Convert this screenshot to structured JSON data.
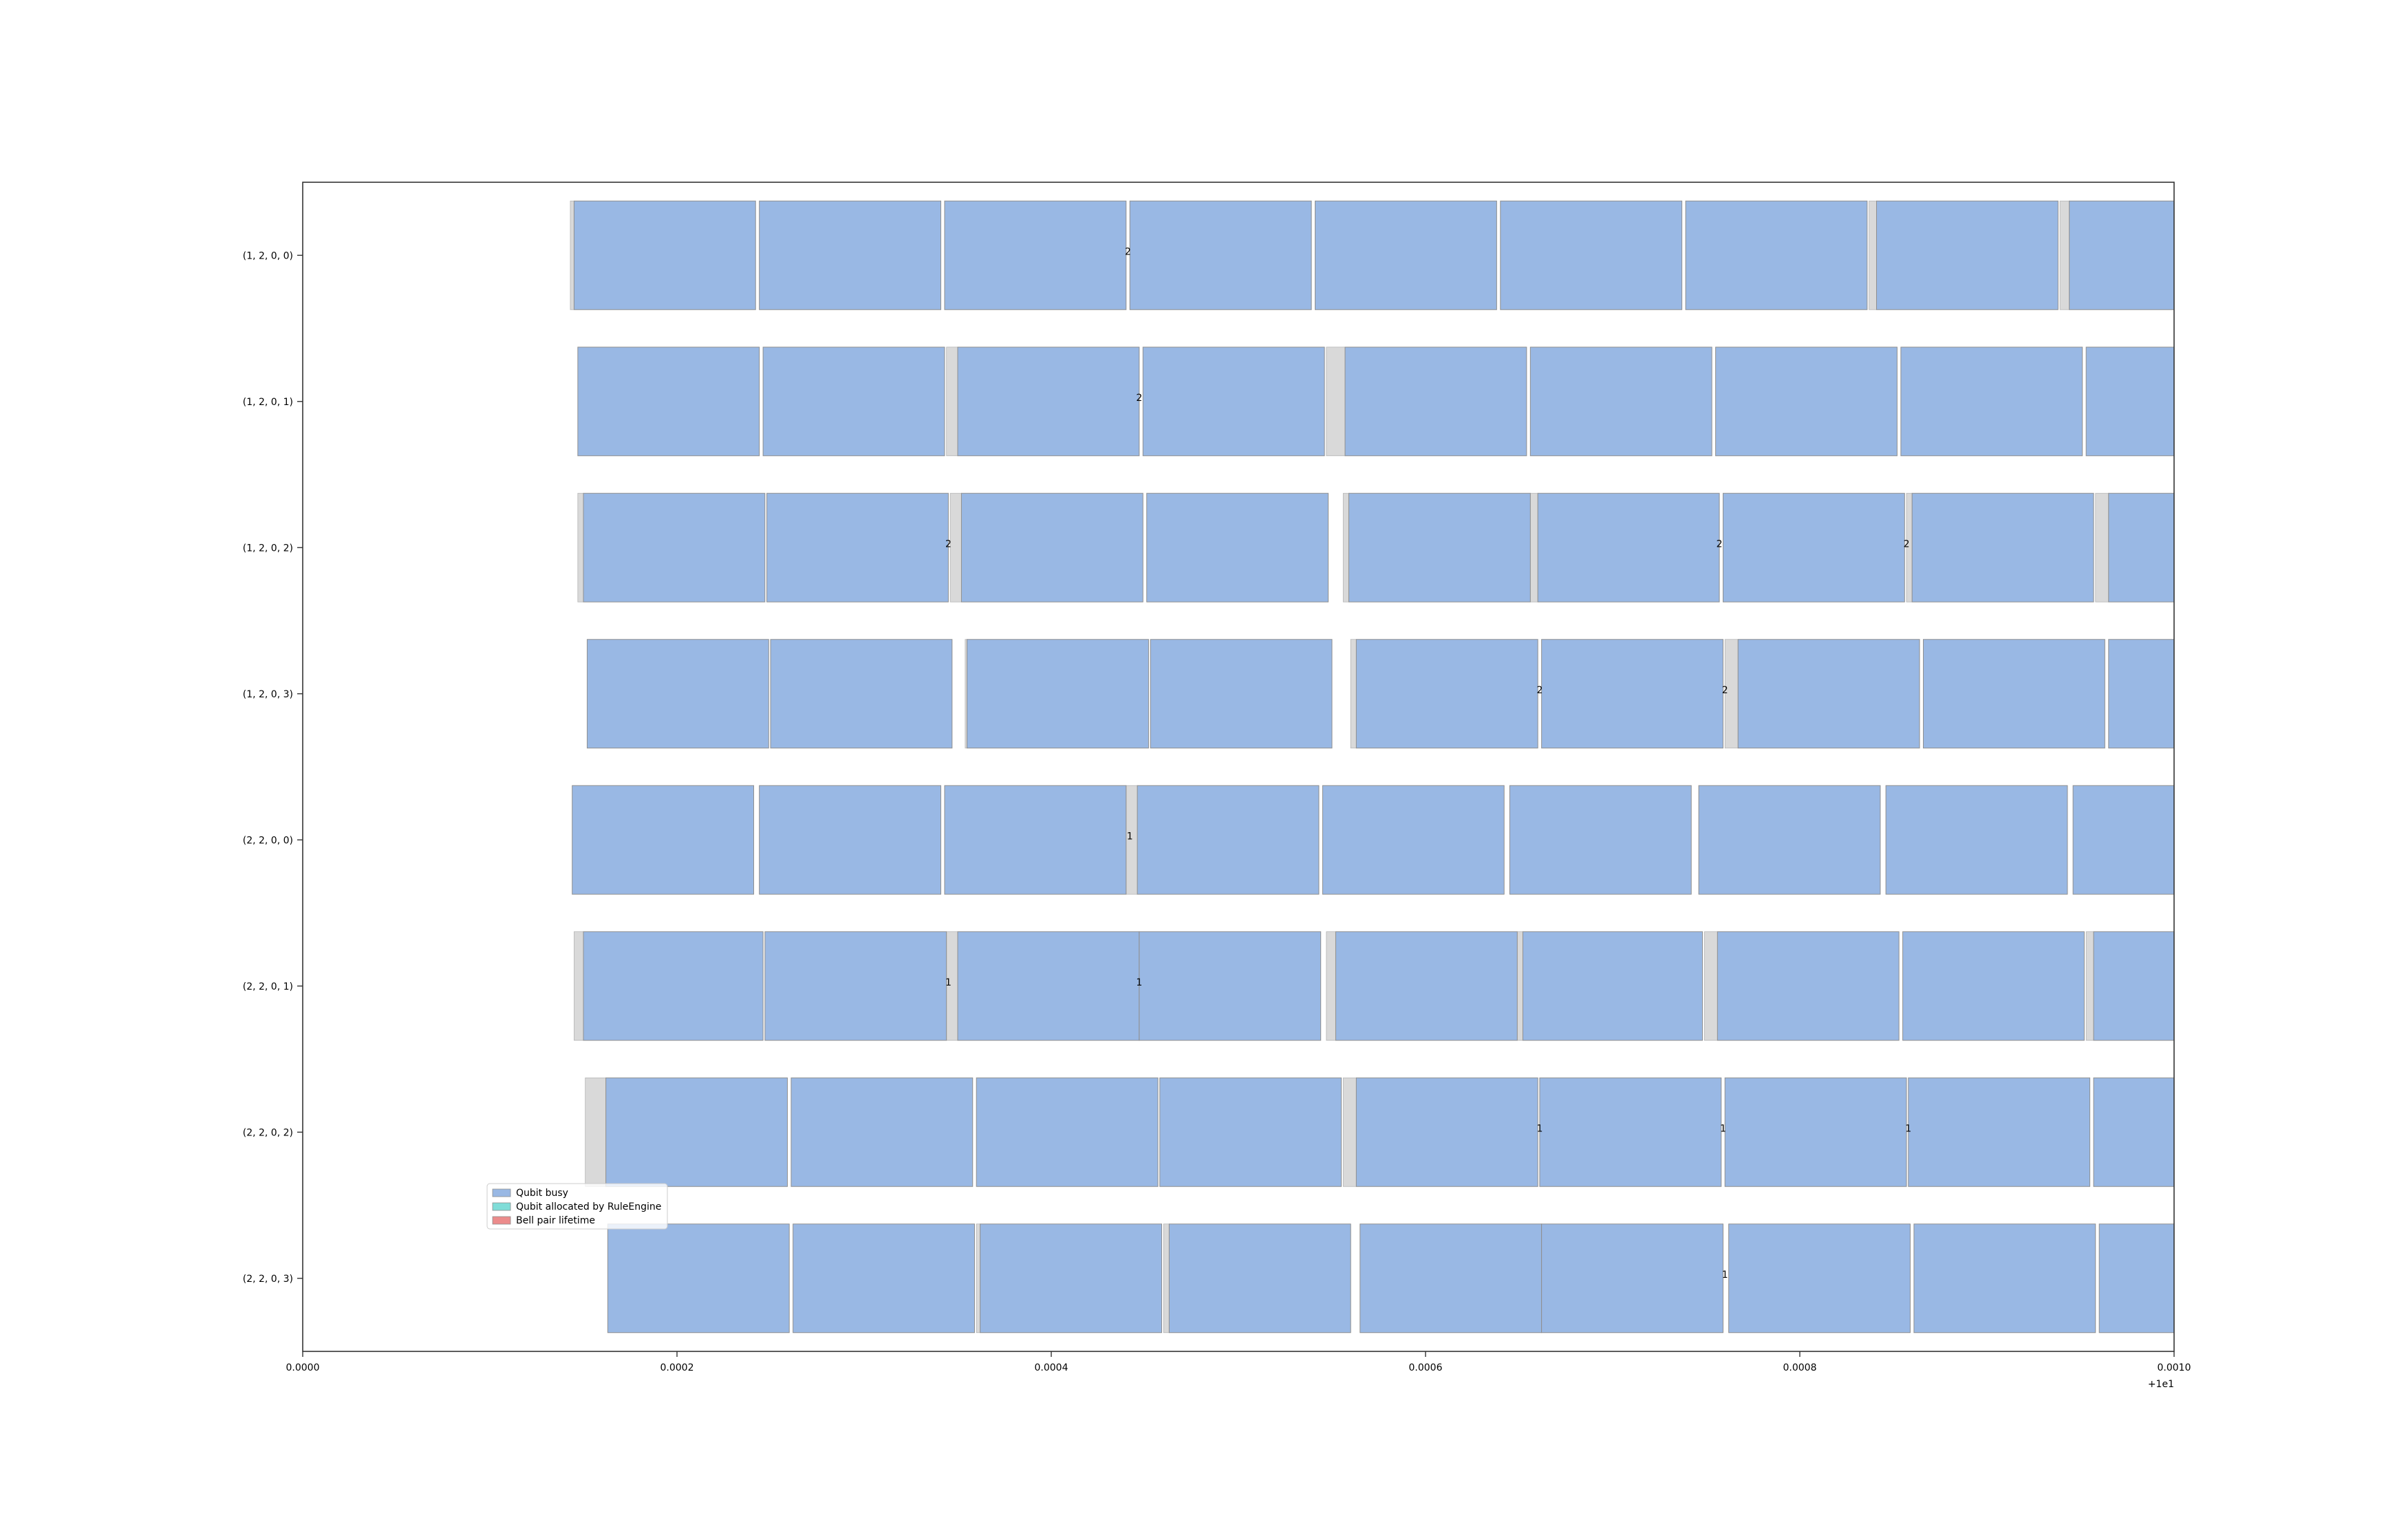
{
  "chart_data": {
    "type": "bar",
    "orientation": "horizontal-timeline",
    "title": "",
    "xlabel": "",
    "ylabel": "",
    "xlim": [
      0.0,
      0.001
    ],
    "x_offset_label": "+1e1",
    "x_ticks": [
      "0.0000",
      "0.0002",
      "0.0004",
      "0.0006",
      "0.0008",
      "0.0010"
    ],
    "x_tick_values": [
      0.0,
      0.0002,
      0.0004,
      0.0006,
      0.0008,
      0.001
    ],
    "categories": [
      "(1, 2, 0, 0)",
      "(1, 2, 0, 1)",
      "(1, 2, 0, 2)",
      "(1, 2, 0, 3)",
      "(2, 2, 0, 0)",
      "(2, 2, 0, 1)",
      "(2, 2, 0, 2)",
      "(2, 2, 0, 3)"
    ],
    "grid": false,
    "legend": {
      "position": "lower-left",
      "entries": [
        {
          "label": "Qubit busy",
          "color": "#99b8e4"
        },
        {
          "label": "Qubit allocated by RuleEngine",
          "color": "#7fddd8"
        },
        {
          "label": "Bell pair lifetime",
          "color": "#ec8b8b"
        }
      ]
    },
    "colors": {
      "busy": "#99b8e4",
      "busy_edge": "#8f8f8f",
      "allocated_gap": "#d9d9d9",
      "axes": "#333333"
    },
    "series": [
      {
        "category": "(1, 2, 0, 0)",
        "busy": [
          [
            0.000145,
            0.000242
          ],
          [
            0.000244,
            0.000341
          ],
          [
            0.000343,
            0.00044
          ],
          [
            0.000442,
            0.000539
          ],
          [
            0.000541,
            0.000638
          ],
          [
            0.00064,
            0.000737
          ],
          [
            0.000739,
            0.000836
          ],
          [
            0.000841,
            0.000938
          ],
          [
            0.000944,
            0.001
          ]
        ],
        "gaps": [
          [
            0.000143,
            0.000145
          ],
          [
            0.000837,
            0.000841
          ],
          [
            0.000939,
            0.000944
          ]
        ],
        "labels": [
          {
            "x": 0.000441,
            "text": "2"
          }
        ]
      },
      {
        "category": "(1, 2, 0, 1)",
        "busy": [
          [
            0.000147,
            0.000244
          ],
          [
            0.000246,
            0.000343
          ],
          [
            0.00035,
            0.000447
          ],
          [
            0.000449,
            0.000546
          ],
          [
            0.000557,
            0.000654
          ],
          [
            0.000656,
            0.000753
          ],
          [
            0.000755,
            0.000852
          ],
          [
            0.000854,
            0.000951
          ],
          [
            0.000953,
            0.001
          ]
        ],
        "gaps": [
          [
            0.000344,
            0.00035
          ],
          [
            0.000547,
            0.000557
          ]
        ],
        "labels": [
          {
            "x": 0.000447,
            "text": "2"
          }
        ]
      },
      {
        "category": "(1, 2, 0, 2)",
        "busy": [
          [
            0.00015,
            0.000247
          ],
          [
            0.000248,
            0.000345
          ],
          [
            0.000352,
            0.000449
          ],
          [
            0.000451,
            0.000548
          ],
          [
            0.000559,
            0.000656
          ],
          [
            0.00066,
            0.000757
          ],
          [
            0.000759,
            0.000856
          ],
          [
            0.00086,
            0.000957
          ],
          [
            0.000965,
            0.001
          ]
        ],
        "gaps": [
          [
            0.000147,
            0.00015
          ],
          [
            0.000346,
            0.000352
          ],
          [
            0.000556,
            0.000559
          ],
          [
            0.000656,
            0.00066
          ],
          [
            0.000857,
            0.00086
          ],
          [
            0.000958,
            0.000965
          ]
        ],
        "labels": [
          {
            "x": 0.000345,
            "text": "2"
          },
          {
            "x": 0.000757,
            "text": "2"
          },
          {
            "x": 0.000857,
            "text": "2"
          }
        ]
      },
      {
        "category": "(1, 2, 0, 3)",
        "busy": [
          [
            0.000152,
            0.000249
          ],
          [
            0.00025,
            0.000347
          ],
          [
            0.000355,
            0.000452
          ],
          [
            0.000453,
            0.00055
          ],
          [
            0.000563,
            0.00066
          ],
          [
            0.000662,
            0.000759
          ],
          [
            0.000767,
            0.000864
          ],
          [
            0.000866,
            0.000963
          ],
          [
            0.000965,
            0.001
          ]
        ],
        "gaps": [
          [
            0.000354,
            0.000355
          ],
          [
            0.00056,
            0.000563
          ],
          [
            0.00076,
            0.000767
          ]
        ],
        "labels": [
          {
            "x": 0.000661,
            "text": "2"
          },
          {
            "x": 0.00076,
            "text": "2"
          }
        ]
      },
      {
        "category": "(2, 2, 0, 0)",
        "busy": [
          [
            0.000144,
            0.000241
          ],
          [
            0.000244,
            0.000341
          ],
          [
            0.000343,
            0.00044
          ],
          [
            0.000446,
            0.000543
          ],
          [
            0.000545,
            0.000642
          ],
          [
            0.000645,
            0.000742
          ],
          [
            0.000746,
            0.000843
          ],
          [
            0.000846,
            0.000943
          ],
          [
            0.000946,
            0.001
          ]
        ],
        "gaps": [
          [
            0.00044,
            0.000446
          ]
        ],
        "labels": [
          {
            "x": 0.000442,
            "text": "1"
          }
        ]
      },
      {
        "category": "(2, 2, 0, 1)",
        "busy": [
          [
            0.00015,
            0.000246
          ],
          [
            0.000247,
            0.000344
          ],
          [
            0.00035,
            0.000447
          ],
          [
            0.000447,
            0.000544
          ],
          [
            0.000552,
            0.000649
          ],
          [
            0.000652,
            0.000748
          ],
          [
            0.000756,
            0.000853
          ],
          [
            0.000855,
            0.000952
          ],
          [
            0.000957,
            0.001
          ]
        ],
        "gaps": [
          [
            0.000145,
            0.00015
          ],
          [
            0.000344,
            0.00035
          ],
          [
            0.000547,
            0.000552
          ],
          [
            0.000649,
            0.000652
          ],
          [
            0.000749,
            0.000756
          ],
          [
            0.000953,
            0.000957
          ]
        ],
        "labels": [
          {
            "x": 0.000345,
            "text": "1"
          },
          {
            "x": 0.000447,
            "text": "1"
          }
        ]
      },
      {
        "category": "(2, 2, 0, 2)",
        "busy": [
          [
            0.000162,
            0.000259
          ],
          [
            0.000261,
            0.000358
          ],
          [
            0.00036,
            0.000457
          ],
          [
            0.000458,
            0.000555
          ],
          [
            0.000563,
            0.00066
          ],
          [
            0.000661,
            0.000758
          ],
          [
            0.00076,
            0.000857
          ],
          [
            0.000858,
            0.000955
          ],
          [
            0.000957,
            0.001
          ]
        ],
        "gaps": [
          [
            0.000151,
            0.000162
          ],
          [
            0.000556,
            0.000563
          ]
        ],
        "labels": [
          {
            "x": 0.000661,
            "text": "1"
          },
          {
            "x": 0.000759,
            "text": "1"
          },
          {
            "x": 0.000858,
            "text": "1"
          }
        ]
      },
      {
        "category": "(2, 2, 0, 3)",
        "busy": [
          [
            0.000163,
            0.00026
          ],
          [
            0.000262,
            0.000359
          ],
          [
            0.000362,
            0.000459
          ],
          [
            0.000463,
            0.00056
          ],
          [
            0.000565,
            0.000662
          ],
          [
            0.000662,
            0.000759
          ],
          [
            0.000762,
            0.000859
          ],
          [
            0.000861,
            0.000958
          ],
          [
            0.00096,
            0.001
          ]
        ],
        "gaps": [
          [
            0.00036,
            0.000362
          ],
          [
            0.00046,
            0.000463
          ]
        ],
        "labels": [
          {
            "x": 0.00076,
            "text": "1"
          }
        ]
      }
    ]
  }
}
